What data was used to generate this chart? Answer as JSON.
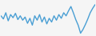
{
  "y_values": [
    50,
    45,
    55,
    42,
    52,
    47,
    54,
    44,
    50,
    43,
    48,
    38,
    46,
    35,
    50,
    43,
    52,
    40,
    48,
    37,
    46,
    40,
    50,
    43,
    52,
    46,
    55,
    50,
    58,
    65,
    55,
    44,
    35,
    22,
    28,
    36,
    45,
    55,
    62,
    68
  ],
  "line_color": "#4a9fd4",
  "line_width": 1.0,
  "bg_color": "#f5f5f5",
  "ylim": [
    18,
    75
  ]
}
